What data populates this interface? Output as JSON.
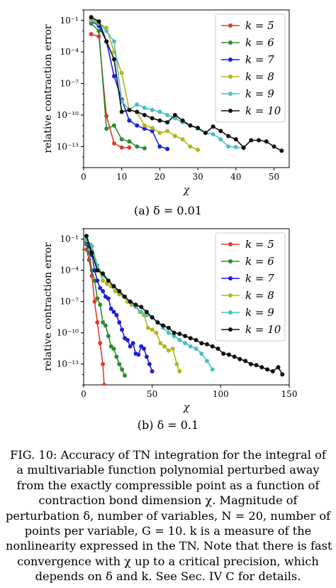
{
  "chart_data": [
    {
      "type": "line",
      "subcaption": "(a) δ = 0.01",
      "xlabel": "χ",
      "ylabel": "relative contraction error",
      "y_scale": "log",
      "xlim": [
        0,
        54
      ],
      "ylim": [
        1e-15,
        1
      ],
      "xticks": [
        0,
        10,
        20,
        30,
        40,
        50
      ],
      "xtick_labels": [
        "0",
        "10",
        "20",
        "30",
        "40",
        "50"
      ],
      "yticks": [
        0.1,
        0.0001,
        1e-07,
        1e-10,
        1e-13
      ],
      "ytick_labels": [
        "10⁻¹",
        "10⁻⁴",
        "10⁻⁷",
        "10⁻¹⁰",
        "10⁻¹³"
      ],
      "grid": false,
      "legend_position": "top-right",
      "series": [
        {
          "name": "k = 5",
          "color": "#e03a2f",
          "x": [
            2,
            4,
            6,
            8,
            10,
            12
          ],
          "y": [
            0.005,
            0.003,
            8e-11,
            2e-13,
            8e-14,
            8e-14
          ]
        },
        {
          "name": "k = 6",
          "color": "#2e8b2e",
          "x": [
            2,
            4,
            6,
            8,
            10,
            12,
            14,
            16
          ],
          "y": [
            0.05,
            0.01,
            5e-12,
            1e-11,
            5e-13,
            3e-13,
            1e-13,
            7e-14
          ]
        },
        {
          "name": "k = 7",
          "color": "#1f1fd8",
          "x": [
            2,
            4,
            6,
            8,
            10,
            12,
            14,
            16,
            18,
            20,
            22
          ],
          "y": [
            0.09,
            0.03,
            0.001,
            5e-07,
            3e-09,
            3e-11,
            1e-11,
            5e-12,
            3e-12,
            1e-13,
            6e-14
          ]
        },
        {
          "name": "k = 8",
          "color": "#b5b51e",
          "x": [
            2,
            4,
            6,
            8,
            10,
            12,
            14,
            16,
            18,
            20,
            22,
            24,
            26,
            28,
            30
          ],
          "y": [
            0.1,
            0.05,
            0.02,
            0.0001,
            1e-06,
            3e-10,
            2e-10,
            1e-11,
            6e-12,
            2e-12,
            3e-12,
            1e-12,
            5e-13,
            1e-13,
            5e-14
          ]
        },
        {
          "name": "k = 9",
          "color": "#4bbfc4",
          "x": [
            2,
            4,
            6,
            8,
            10,
            12,
            14,
            16,
            18,
            20,
            22,
            24,
            26,
            28,
            30,
            32,
            34,
            36,
            38,
            40,
            42
          ],
          "y": [
            0.15,
            0.06,
            0.01,
            0.001,
            2e-09,
            3e-10,
            1e-09,
            5e-10,
            3e-10,
            2e-10,
            1e-10,
            5e-11,
            2e-11,
            1e-11,
            5e-12,
            2e-12,
            1.5e-12,
            5e-13,
            1e-13,
            9e-14,
            7e-14
          ]
        },
        {
          "name": "k = 10",
          "color": "#111111",
          "x": [
            2,
            4,
            6,
            8,
            10,
            12,
            14,
            16,
            18,
            20,
            22,
            24,
            26,
            28,
            30,
            32,
            34,
            36,
            38,
            40,
            42,
            44,
            46,
            48,
            50,
            52
          ],
          "y": [
            0.2,
            0.08,
            0.001,
            2e-05,
            2e-10,
            3e-10,
            2e-10,
            1e-10,
            5e-11,
            3e-11,
            2e-11,
            1e-10,
            3e-11,
            1e-11,
            6e-12,
            2e-12,
            8e-12,
            3e-12,
            1e-12,
            5e-13,
            8e-14,
            4e-13,
            4e-13,
            3e-13,
            1e-13,
            4e-14
          ]
        }
      ]
    },
    {
      "type": "line",
      "subcaption": "(b) δ = 0.1",
      "xlabel": "χ",
      "ylabel": "relative contraction error",
      "y_scale": "log",
      "xlim": [
        0,
        150
      ],
      "ylim": [
        1e-15,
        1
      ],
      "xticks": [
        0,
        50,
        100,
        150
      ],
      "xtick_labels": [
        "0",
        "50",
        "100",
        "150"
      ],
      "yticks": [
        0.1,
        0.0001,
        1e-07,
        1e-10,
        1e-13
      ],
      "ytick_labels": [
        "10⁻¹",
        "10⁻⁴",
        "10⁻⁷",
        "10⁻¹⁰",
        "10⁻¹³"
      ],
      "grid": false,
      "legend_position": "top-right",
      "series": [
        {
          "name": "k = 5",
          "color": "#e03a2f",
          "x": [
            2,
            4,
            6,
            8,
            10,
            12,
            14,
            15
          ],
          "y": [
            0.01,
            0.001,
            3e-05,
            1e-07,
            1e-09,
            1e-11,
            1e-13,
            1e-15
          ]
        },
        {
          "name": "k = 6",
          "color": "#2e8b2e",
          "x": [
            2,
            4,
            6,
            8,
            10,
            12,
            14,
            16,
            18,
            20,
            22,
            24,
            26,
            28,
            30
          ],
          "y": [
            0.03,
            0.005,
            0.0001,
            1e-05,
            2e-07,
            5e-08,
            1e-09,
            5e-10,
            5e-11,
            5e-12,
            3e-12,
            5e-13,
            1e-13,
            3e-14,
            8e-15
          ]
        },
        {
          "name": "k = 7",
          "color": "#1f1fd8",
          "x": [
            2,
            4,
            6,
            8,
            10,
            12,
            14,
            16,
            18,
            20,
            22,
            24,
            26,
            28,
            30,
            32,
            34,
            36,
            38,
            40,
            42,
            44,
            46,
            48,
            50
          ],
          "y": [
            0.06,
            0.02,
            0.003,
            0.0001,
            1e-05,
            2e-06,
            1e-06,
            3e-07,
            2e-07,
            2e-08,
            1e-08,
            5e-09,
            1e-09,
            2e-10,
            3e-11,
            2e-11,
            5e-12,
            1e-11,
            1e-12,
            8e-13,
            5e-12,
            3e-12,
            5e-13,
            1e-13,
            2e-14
          ]
        },
        {
          "name": "k = 8",
          "color": "#b5b51e",
          "x": [
            2,
            5,
            8,
            11,
            14,
            17,
            20,
            23,
            26,
            29,
            32,
            35,
            38,
            41,
            44,
            47,
            50,
            53,
            56,
            59,
            62,
            65,
            68,
            70
          ],
          "y": [
            0.08,
            0.03,
            0.001,
            0.0001,
            1e-05,
            5e-06,
            3e-06,
            1e-06,
            5e-07,
            3e-07,
            1e-07,
            5e-08,
            3e-08,
            1e-08,
            5e-09,
            3e-10,
            2e-10,
            1e-10,
            1e-11,
            5e-12,
            2e-12,
            3e-12,
            1e-13,
            2e-14
          ]
        },
        {
          "name": "k = 9",
          "color": "#4bbfc4",
          "x": [
            2,
            6,
            10,
            14,
            18,
            22,
            26,
            30,
            34,
            38,
            42,
            46,
            50,
            54,
            58,
            62,
            66,
            70,
            74,
            78,
            82,
            86,
            90,
            94
          ],
          "y": [
            0.1,
            0.02,
            0.0003,
            3e-05,
            1e-05,
            3e-06,
            8e-07,
            3e-07,
            1e-07,
            3e-08,
            1e-08,
            5e-09,
            3e-09,
            1e-09,
            3e-10,
            1e-10,
            5e-11,
            2e-11,
            1e-11,
            5e-12,
            3e-12,
            1e-12,
            2e-13,
            3e-14
          ]
        },
        {
          "name": "k = 10",
          "color": "#111111",
          "x": [
            2,
            6,
            10,
            14,
            18,
            22,
            26,
            30,
            34,
            38,
            42,
            46,
            50,
            54,
            58,
            62,
            66,
            70,
            74,
            78,
            82,
            86,
            90,
            94,
            98,
            102,
            106,
            110,
            114,
            118,
            122,
            126,
            130,
            134,
            138,
            142,
            145
          ],
          "y": [
            0.2,
            0.005,
            0.0001,
            5e-05,
            1e-05,
            3e-06,
            1e-06,
            3e-07,
            1e-07,
            5e-08,
            3e-08,
            1e-08,
            3e-09,
            1e-09,
            5e-10,
            3e-10,
            1e-10,
            8e-11,
            5e-11,
            3e-11,
            2e-11,
            1e-11,
            8e-12,
            5e-12,
            3e-12,
            1e-12,
            8e-13,
            5e-13,
            3e-13,
            2e-13,
            1e-13,
            8e-14,
            5e-14,
            3e-14,
            2e-14,
            5e-14,
            1e-14
          ]
        }
      ]
    }
  ],
  "caption": {
    "line1": "FIG. 10: Accuracy of TN integration for the integral of",
    "line2": "a multivariable function polynomial perturbed away",
    "line3": "from the exactly compressible point as a function of",
    "line4": "contraction bond dimension χ. Magnitude of",
    "line5": "perturbation δ, number of variables, N = 20, number of",
    "line6": "points per variable, G = 10. k is a measure of the",
    "line7": "nonlinearity expressed in the TN. Note that there is fast",
    "line8": "convergence with χ up to a critical precision, which",
    "line9": "depends on δ and k. See Sec. IV C for details."
  }
}
